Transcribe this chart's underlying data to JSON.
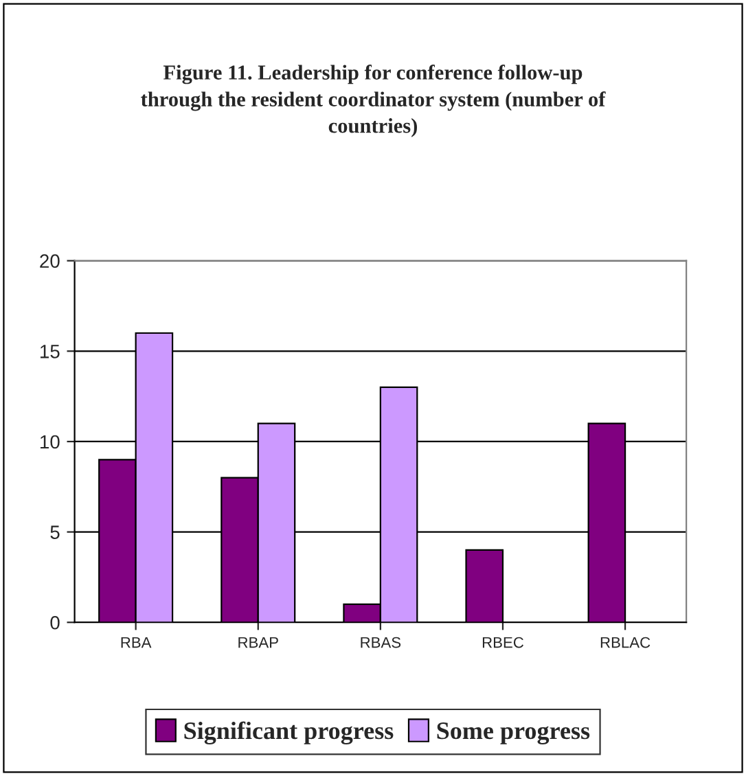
{
  "chart_data": {
    "type": "bar",
    "title": "Figure 11. Leadership for conference follow-up\nthrough the resident coordinator system (number of\ncountries)",
    "categories": [
      "RBA",
      "RBAP",
      "RBAS",
      "RBEC",
      "RBLAC"
    ],
    "series": [
      {
        "name": "Significant progress",
        "color": "#800080",
        "values": [
          9,
          8,
          1,
          4,
          11
        ]
      },
      {
        "name": "Some progress",
        "color": "#cc99ff",
        "values": [
          16,
          11,
          13,
          null,
          null
        ]
      }
    ],
    "ylim": [
      0,
      20
    ],
    "yticks": [
      0,
      5,
      10,
      15,
      20
    ],
    "grid": "y",
    "legend": "bottom"
  }
}
